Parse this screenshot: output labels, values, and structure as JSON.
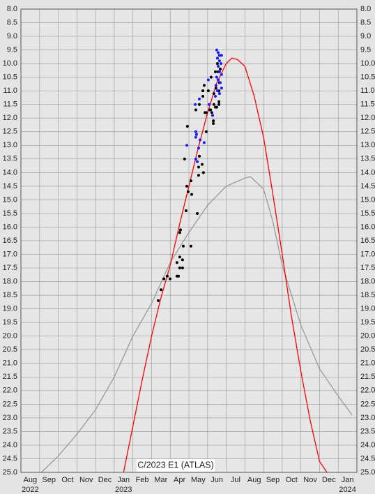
{
  "chart_data": {
    "type": "scatter",
    "title": "C/2023 E1 (ATLAS)",
    "xlim": [
      0,
      18
    ],
    "xgrid": [
      0,
      1,
      2,
      3,
      4,
      5,
      6,
      7,
      8,
      9,
      10,
      11,
      12,
      13,
      14,
      15,
      16,
      17,
      18
    ],
    "xticks": [
      {
        "value": 0.5,
        "label": "Aug"
      },
      {
        "value": 1.5,
        "label": "Sep"
      },
      {
        "value": 2.5,
        "label": "Oct"
      },
      {
        "value": 3.5,
        "label": "Nov"
      },
      {
        "value": 4.5,
        "label": "Dec"
      },
      {
        "value": 5.5,
        "label": "Jan"
      },
      {
        "value": 6.5,
        "label": "Feb"
      },
      {
        "value": 7.5,
        "label": "Mar"
      },
      {
        "value": 8.5,
        "label": "Apr"
      },
      {
        "value": 9.5,
        "label": "May"
      },
      {
        "value": 10.5,
        "label": "Jun"
      },
      {
        "value": 11.5,
        "label": "Jul"
      },
      {
        "value": 12.5,
        "label": "Aug"
      },
      {
        "value": 13.5,
        "label": "Sep"
      },
      {
        "value": 14.5,
        "label": "Oct"
      },
      {
        "value": 15.5,
        "label": "Nov"
      },
      {
        "value": 16.5,
        "label": "Dec"
      },
      {
        "value": 17.5,
        "label": "Jan"
      }
    ],
    "year_labels": [
      {
        "value": 0.5,
        "label": "2022"
      },
      {
        "value": 5.5,
        "label": "2023"
      },
      {
        "value": 17.5,
        "label": "2024"
      }
    ],
    "ylim": [
      25,
      8
    ],
    "yticks": [
      {
        "value": 8,
        "label": "8.0"
      },
      8.5,
      {
        "value": 9,
        "label": "9.0"
      },
      9.5,
      {
        "value": 10,
        "label": "10.0"
      },
      10.5,
      {
        "value": 11,
        "label": "11.0"
      },
      11.5,
      {
        "value": 12,
        "label": "12.0"
      },
      12.5,
      {
        "value": 13,
        "label": "13.0"
      },
      13.5,
      {
        "value": 14,
        "label": "14.0"
      },
      14.5,
      {
        "value": 15,
        "label": "15.0"
      },
      15.5,
      {
        "value": 16,
        "label": "16.0"
      },
      16.5,
      {
        "value": 17,
        "label": "17.0"
      },
      17.5,
      {
        "value": 18,
        "label": "18.0"
      },
      18.5,
      {
        "value": 19,
        "label": "19.0"
      },
      19.5,
      {
        "value": 20,
        "label": "20.0"
      },
      20.5,
      {
        "value": 21,
        "label": "21.0"
      },
      21.5,
      {
        "value": 22,
        "label": "22.0"
      },
      22.5,
      {
        "value": 23,
        "label": "23.0"
      },
      23.5,
      {
        "value": 24,
        "label": "24.0"
      },
      24.5,
      {
        "value": 25,
        "label": "25.0"
      }
    ],
    "grid": true,
    "series": [
      {
        "mode": "line",
        "color": "#999999",
        "x": [
          1.1,
          2,
          3,
          4,
          5,
          6,
          7,
          8,
          9,
          10,
          11,
          12,
          12.3,
          13,
          13.5,
          14,
          15,
          16,
          17,
          17.75
        ],
        "values": [
          25.0,
          24.4,
          23.6,
          22.7,
          21.5,
          20.0,
          18.8,
          17.3,
          16.2,
          15.2,
          14.5,
          14.2,
          14.15,
          14.6,
          15.8,
          17.4,
          19.6,
          21.2,
          22.2,
          22.9
        ]
      },
      {
        "mode": "line",
        "color": "#ff0000",
        "x": [
          5.5,
          6,
          6.5,
          7,
          7.5,
          8,
          8.5,
          9,
          9.5,
          10,
          10.5,
          11,
          11.3,
          11.6,
          12,
          12.5,
          13,
          13.5,
          14,
          14.5,
          15,
          15.5,
          16,
          16.4
        ],
        "values": [
          25.0,
          23.3,
          21.6,
          20.0,
          18.6,
          17.4,
          15.9,
          14.5,
          13.1,
          11.8,
          10.7,
          10.0,
          9.8,
          9.85,
          10.1,
          11.2,
          12.7,
          14.8,
          17.0,
          19.3,
          21.3,
          23.1,
          24.6,
          25.0
        ]
      },
      {
        "mode": "markers",
        "color": "#000000",
        "x": [
          7.36,
          7.51,
          7.66,
          7.84,
          7.99,
          8.36,
          8.44,
          8.36,
          8.51,
          8.66,
          8.51,
          8.66,
          8.7,
          9.11,
          8.51,
          8.55,
          8.85,
          9.45,
          8.89,
          8.96,
          9.15,
          9.11,
          8.77,
          8.92,
          9.52,
          9.52,
          9.78,
          9.71,
          9.56,
          9.37,
          9.56,
          9.75,
          9.75,
          9.82,
          10.04,
          10.19,
          9.93,
          10.12,
          10.23,
          10.31,
          10.31,
          10.34,
          10.42,
          10.49,
          10.61,
          10.61,
          10.34,
          10.42,
          10.57,
          10.57,
          10.68,
          10.45,
          10.61,
          10.64,
          9.93,
          9.86,
          10.16,
          10.53
        ],
        "values": [
          18.7,
          18.3,
          17.9,
          17.8,
          17.9,
          17.8,
          17.8,
          17.3,
          17.1,
          17.2,
          17.5,
          17.5,
          16.7,
          16.7,
          16.2,
          16.1,
          15.4,
          15.5,
          14.5,
          14.7,
          14.8,
          14.3,
          13.5,
          12.3,
          13.8,
          14.1,
          14.0,
          13.7,
          13.4,
          11.7,
          11.5,
          11.0,
          11.2,
          10.8,
          11.0,
          10.5,
          12.5,
          11.7,
          11.8,
          12.2,
          12.1,
          11.5,
          11.6,
          11.6,
          11.4,
          11.5,
          11.1,
          10.3,
          10.3,
          10.6,
          10.2,
          10.9,
          11.0,
          10.7,
          11.8,
          11.8,
          11.7,
          10.0
        ]
      },
      {
        "mode": "markers",
        "color": "#1a1aff",
        "x": [
          10.49,
          10.57,
          10.64,
          10.75,
          10.53,
          10.64,
          10.72,
          10.57,
          10.64,
          10.75,
          10.49,
          10.57,
          10.68,
          10.45,
          10.75,
          10.53,
          10.64,
          10.42,
          10.04,
          9.56,
          9.34,
          10.08,
          10.27,
          9.37,
          9.41,
          9.37,
          9.82,
          8.89,
          9.6,
          9.52,
          9.37,
          9.45
        ],
        "values": [
          9.5,
          9.6,
          9.7,
          9.7,
          9.8,
          9.9,
          10.0,
          10.1,
          10.3,
          10.4,
          10.5,
          10.6,
          10.7,
          10.8,
          10.9,
          11.0,
          11.1,
          11.2,
          10.6,
          11.3,
          11.5,
          11.5,
          11.9,
          12.5,
          12.6,
          12.7,
          12.9,
          13.0,
          12.8,
          13.1,
          13.5,
          13.6
        ]
      }
    ]
  }
}
